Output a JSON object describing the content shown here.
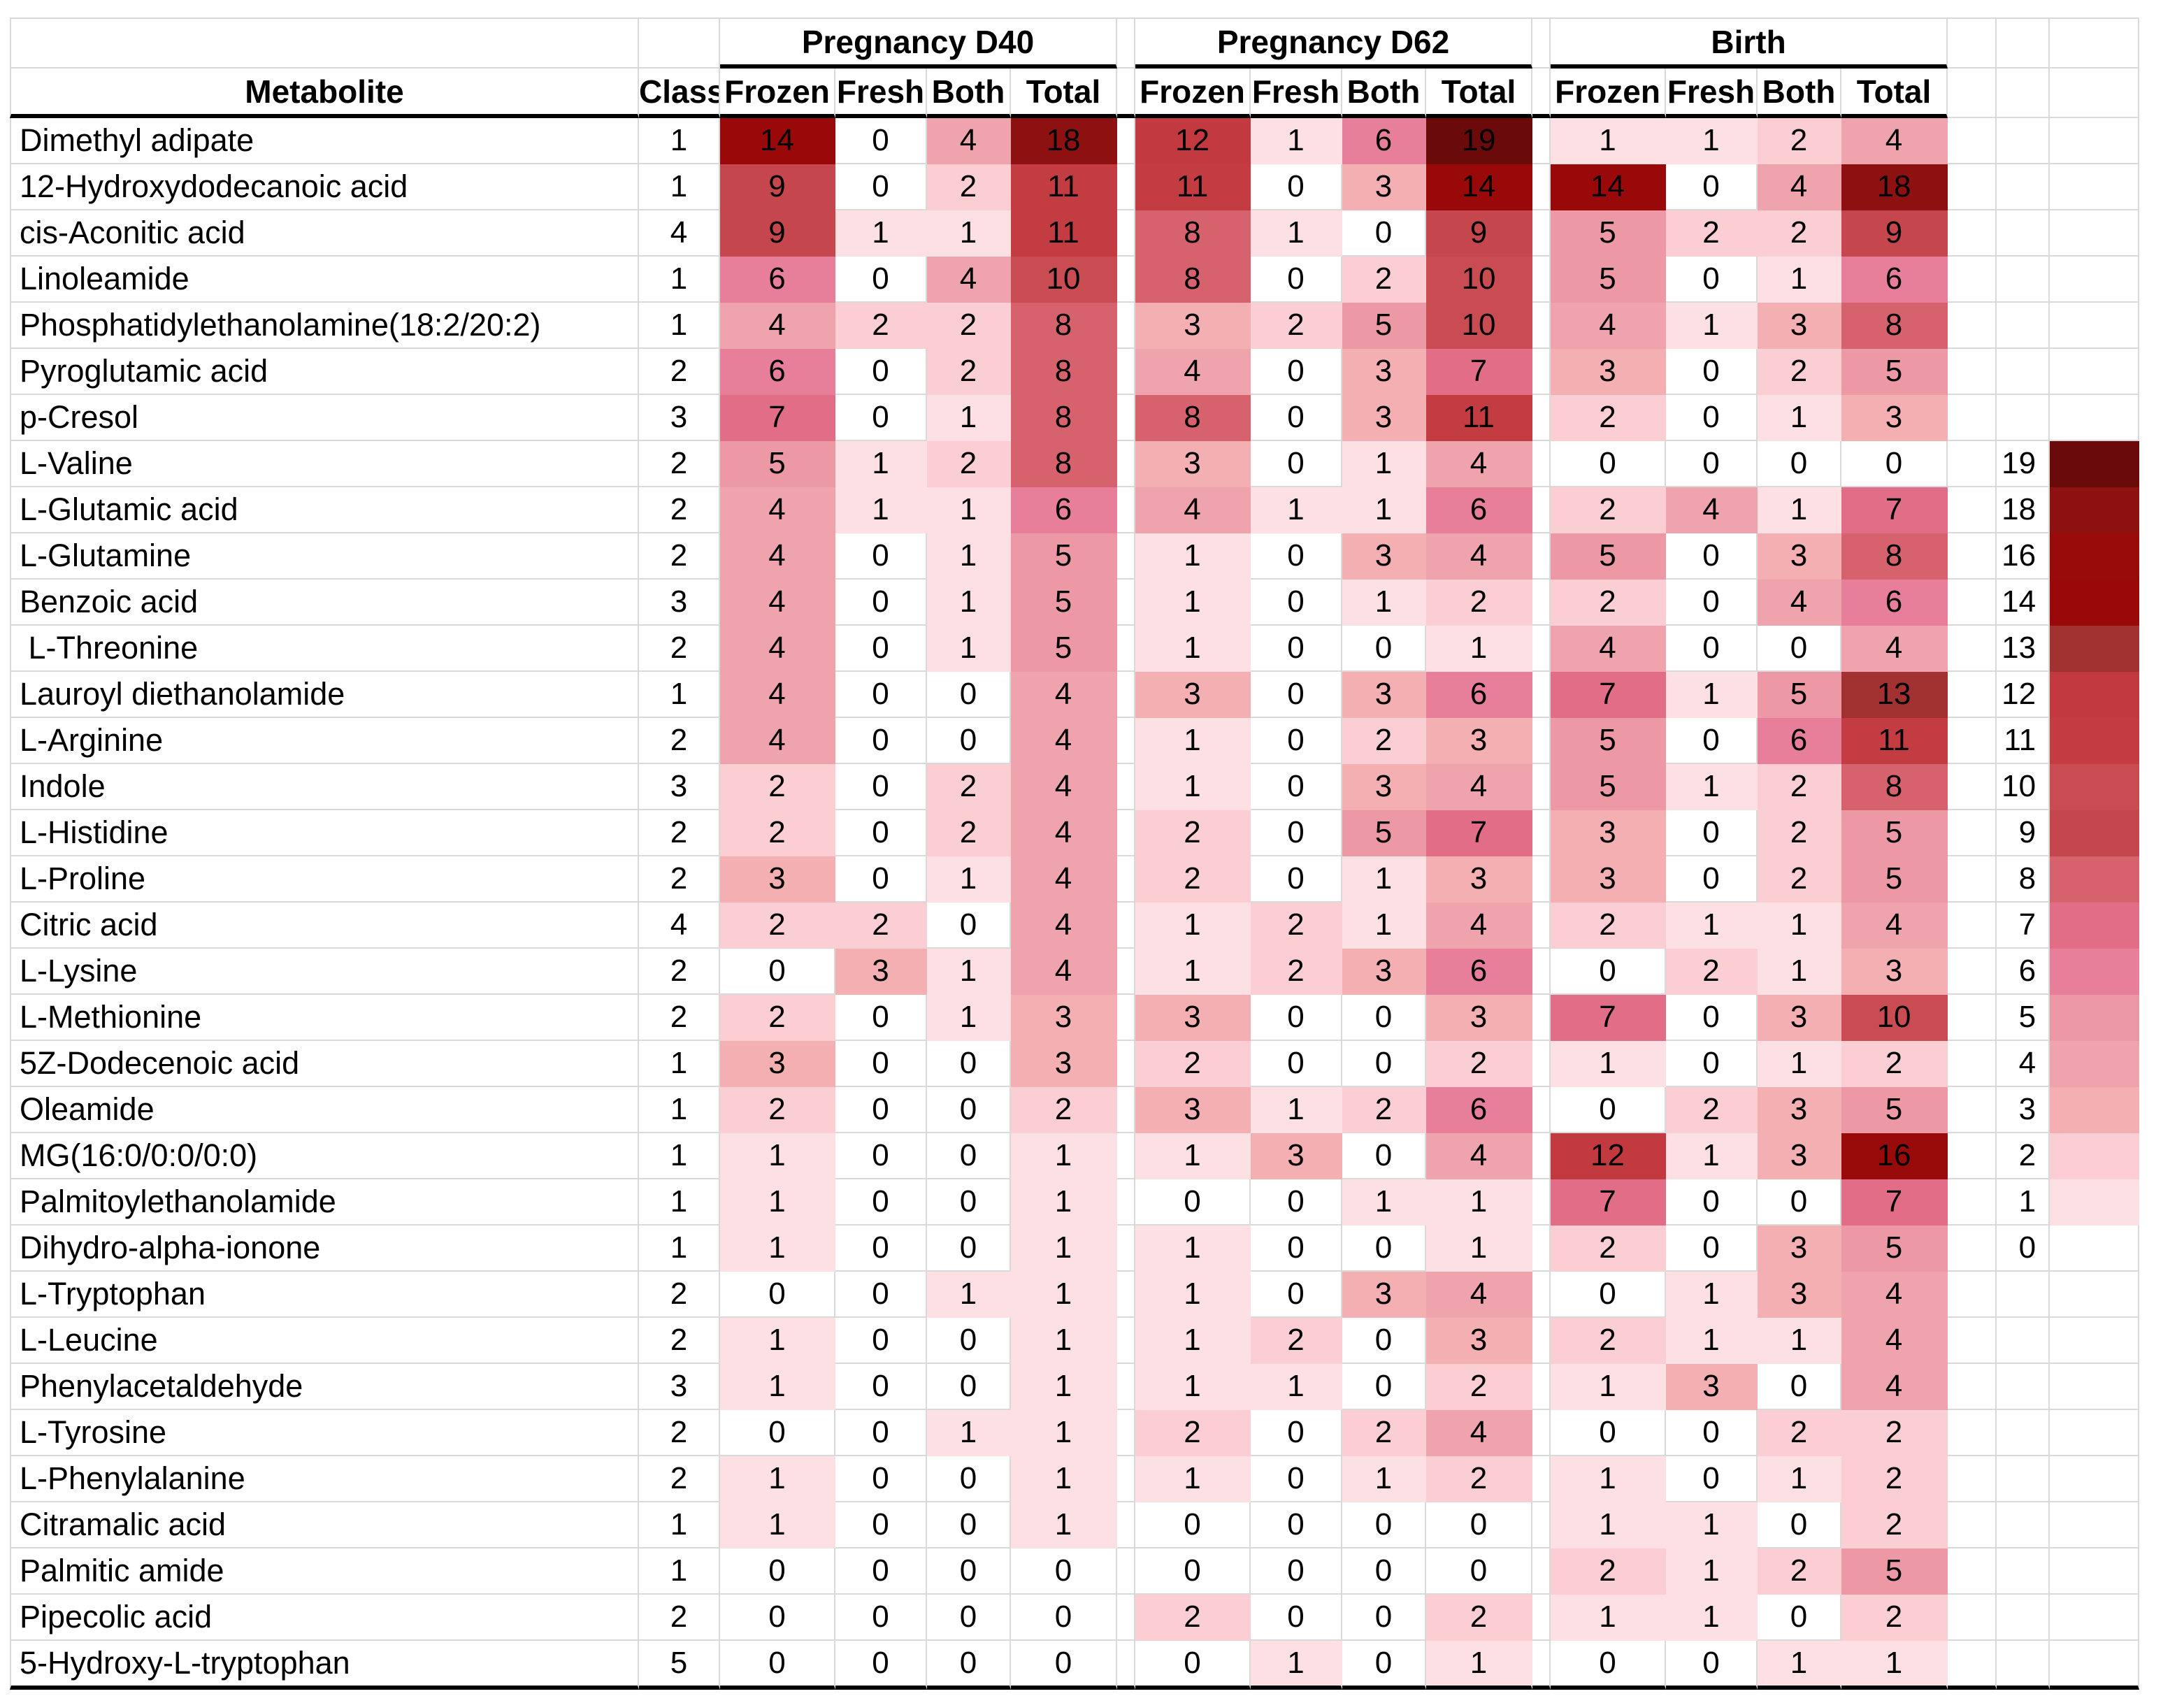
{
  "chart_data": {
    "type": "heatmap",
    "description": "Metabolite detection counts heatmap across sampling times and preservation methods, with color scale legend 0-19",
    "col_header": {
      "metabolite": "Metabolite",
      "class": "Class"
    },
    "groups": [
      {
        "label": "Pregnancy D40",
        "cols": [
          "Frozen",
          "Fresh",
          "Both",
          "Total"
        ]
      },
      {
        "label": "Pregnancy D62",
        "cols": [
          "Frozen",
          "Fresh",
          "Both",
          "Total"
        ]
      },
      {
        "label": "Birth",
        "cols": [
          "Frozen",
          "Fresh",
          "Both",
          "Total"
        ]
      }
    ],
    "rows": [
      {
        "metabolite": "Dimethyl adipate",
        "class": 1,
        "values": [
          14,
          0,
          4,
          18,
          12,
          1,
          6,
          19,
          1,
          1,
          2,
          4
        ]
      },
      {
        "metabolite": "12-Hydroxydodecanoic acid",
        "class": 1,
        "values": [
          9,
          0,
          2,
          11,
          11,
          0,
          3,
          14,
          14,
          0,
          4,
          18
        ]
      },
      {
        "metabolite": "cis-Aconitic acid",
        "class": 4,
        "values": [
          9,
          1,
          1,
          11,
          8,
          1,
          0,
          9,
          5,
          2,
          2,
          9
        ]
      },
      {
        "metabolite": "Linoleamide",
        "class": 1,
        "values": [
          6,
          0,
          4,
          10,
          8,
          0,
          2,
          10,
          5,
          0,
          1,
          6
        ]
      },
      {
        "metabolite": "Phosphatidylethanolamine(18:2/20:2)",
        "class": 1,
        "values": [
          4,
          2,
          2,
          8,
          3,
          2,
          5,
          10,
          4,
          1,
          3,
          8
        ]
      },
      {
        "metabolite": "Pyroglutamic acid",
        "class": 2,
        "values": [
          6,
          0,
          2,
          8,
          4,
          0,
          3,
          7,
          3,
          0,
          2,
          5
        ]
      },
      {
        "metabolite": "p-Cresol",
        "class": 3,
        "values": [
          7,
          0,
          1,
          8,
          8,
          0,
          3,
          11,
          2,
          0,
          1,
          3
        ]
      },
      {
        "metabolite": "L-Valine",
        "class": 2,
        "values": [
          5,
          1,
          2,
          8,
          3,
          0,
          1,
          4,
          0,
          0,
          0,
          0
        ]
      },
      {
        "metabolite": "L-Glutamic acid",
        "class": 2,
        "values": [
          4,
          1,
          1,
          6,
          4,
          1,
          1,
          6,
          2,
          4,
          1,
          7
        ]
      },
      {
        "metabolite": "L-Glutamine",
        "class": 2,
        "values": [
          4,
          0,
          1,
          5,
          1,
          0,
          3,
          4,
          5,
          0,
          3,
          8
        ]
      },
      {
        "metabolite": "Benzoic acid",
        "class": 3,
        "values": [
          4,
          0,
          1,
          5,
          1,
          0,
          1,
          2,
          2,
          0,
          4,
          6
        ]
      },
      {
        "metabolite": " L-Threonine",
        "class": 2,
        "values": [
          4,
          0,
          1,
          5,
          1,
          0,
          0,
          1,
          4,
          0,
          0,
          4
        ]
      },
      {
        "metabolite": "Lauroyl diethanolamide",
        "class": 1,
        "values": [
          4,
          0,
          0,
          4,
          3,
          0,
          3,
          6,
          7,
          1,
          5,
          13
        ]
      },
      {
        "metabolite": "L-Arginine",
        "class": 2,
        "values": [
          4,
          0,
          0,
          4,
          1,
          0,
          2,
          3,
          5,
          0,
          6,
          11
        ]
      },
      {
        "metabolite": "Indole",
        "class": 3,
        "values": [
          2,
          0,
          2,
          4,
          1,
          0,
          3,
          4,
          5,
          1,
          2,
          8
        ]
      },
      {
        "metabolite": "L-Histidine",
        "class": 2,
        "values": [
          2,
          0,
          2,
          4,
          2,
          0,
          5,
          7,
          3,
          0,
          2,
          5
        ]
      },
      {
        "metabolite": "L-Proline",
        "class": 2,
        "values": [
          3,
          0,
          1,
          4,
          2,
          0,
          1,
          3,
          3,
          0,
          2,
          5
        ]
      },
      {
        "metabolite": "Citric acid",
        "class": 4,
        "values": [
          2,
          2,
          0,
          4,
          1,
          2,
          1,
          4,
          2,
          1,
          1,
          4
        ]
      },
      {
        "metabolite": "L-Lysine",
        "class": 2,
        "values": [
          0,
          3,
          1,
          4,
          1,
          2,
          3,
          6,
          0,
          2,
          1,
          3
        ]
      },
      {
        "metabolite": "L-Methionine",
        "class": 2,
        "values": [
          2,
          0,
          1,
          3,
          3,
          0,
          0,
          3,
          7,
          0,
          3,
          10
        ]
      },
      {
        "metabolite": "5Z-Dodecenoic acid",
        "class": 1,
        "values": [
          3,
          0,
          0,
          3,
          2,
          0,
          0,
          2,
          1,
          0,
          1,
          2
        ]
      },
      {
        "metabolite": "Oleamide",
        "class": 1,
        "values": [
          2,
          0,
          0,
          2,
          3,
          1,
          2,
          6,
          0,
          2,
          3,
          5
        ]
      },
      {
        "metabolite": "MG(16:0/0:0/0:0)",
        "class": 1,
        "values": [
          1,
          0,
          0,
          1,
          1,
          3,
          0,
          4,
          12,
          1,
          3,
          16
        ]
      },
      {
        "metabolite": "Palmitoylethanolamide",
        "class": 1,
        "values": [
          1,
          0,
          0,
          1,
          0,
          0,
          1,
          1,
          7,
          0,
          0,
          7
        ]
      },
      {
        "metabolite": "Dihydro-alpha-ionone",
        "class": 1,
        "values": [
          1,
          0,
          0,
          1,
          1,
          0,
          0,
          1,
          2,
          0,
          3,
          5
        ]
      },
      {
        "metabolite": "L-Tryptophan",
        "class": 2,
        "values": [
          0,
          0,
          1,
          1,
          1,
          0,
          3,
          4,
          0,
          1,
          3,
          4
        ]
      },
      {
        "metabolite": "L-Leucine",
        "class": 2,
        "values": [
          1,
          0,
          0,
          1,
          1,
          2,
          0,
          3,
          2,
          1,
          1,
          4
        ]
      },
      {
        "metabolite": "Phenylacetaldehyde",
        "class": 3,
        "values": [
          1,
          0,
          0,
          1,
          1,
          1,
          0,
          2,
          1,
          3,
          0,
          4
        ]
      },
      {
        "metabolite": "L-Tyrosine",
        "class": 2,
        "values": [
          0,
          0,
          1,
          1,
          2,
          0,
          2,
          4,
          0,
          0,
          2,
          2
        ]
      },
      {
        "metabolite": "L-Phenylalanine",
        "class": 2,
        "values": [
          1,
          0,
          0,
          1,
          1,
          0,
          1,
          2,
          1,
          0,
          1,
          2
        ]
      },
      {
        "metabolite": "Citramalic acid",
        "class": 1,
        "values": [
          1,
          0,
          0,
          1,
          0,
          0,
          0,
          0,
          1,
          1,
          0,
          2
        ]
      },
      {
        "metabolite": "Palmitic amide",
        "class": 1,
        "values": [
          0,
          0,
          0,
          0,
          0,
          0,
          0,
          0,
          2,
          1,
          2,
          5
        ]
      },
      {
        "metabolite": "Pipecolic acid",
        "class": 2,
        "values": [
          0,
          0,
          0,
          0,
          2,
          0,
          0,
          2,
          1,
          1,
          0,
          2
        ]
      },
      {
        "metabolite": "5-Hydroxy-L-tryptophan",
        "class": 5,
        "values": [
          0,
          0,
          0,
          0,
          0,
          1,
          0,
          1,
          0,
          0,
          1,
          1
        ]
      }
    ],
    "legend": {
      "values": [
        19,
        18,
        16,
        14,
        13,
        12,
        11,
        10,
        9,
        8,
        7,
        6,
        5,
        4,
        3,
        2,
        1,
        0
      ],
      "start_row_index": 7
    },
    "colors": {
      "gridline": "#D9D9D9",
      "thick_border": "#000000",
      "scale": {
        "0": "#FFFFFF",
        "1": "#FDE0E3",
        "2": "#FBCED4",
        "3": "#F4AFB3",
        "4": "#EFA3AC",
        "5": "#EC99A5",
        "6": "#E77E9A",
        "7": "#E26D87",
        "8": "#D5626C",
        "9": "#C5464C",
        "10": "#C84C52",
        "11": "#C33C41",
        "12": "#C23A3F",
        "13": "#A23132",
        "14": "#9A0909",
        "15": "#970A0A",
        "16": "#990B0B",
        "17": "#8F0E0E",
        "18": "#8D1111",
        "19": "#6B0A0A"
      }
    }
  }
}
